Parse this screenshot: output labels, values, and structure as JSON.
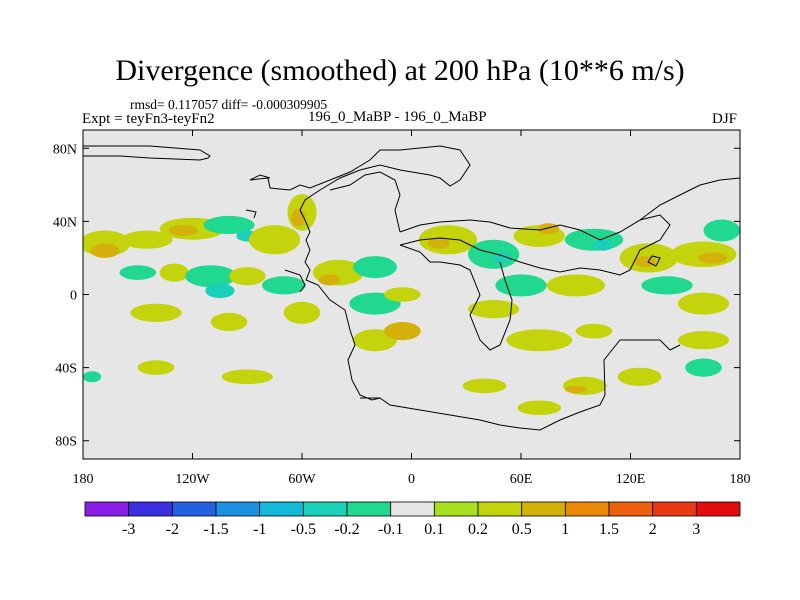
{
  "title": "Divergence (smoothed) at 200 hPa (10**6 m/s)",
  "stats": "rmsd= 0.117057 diff= -0.000309905",
  "expt": "Expt = teyFn3-teyFn2",
  "case": "196_0_MaBP - 196_0_MaBP",
  "season": "DJF",
  "colors": {
    "background": "#e6e6e6",
    "coast": "#000000"
  },
  "chart_data": {
    "type": "heatmap",
    "title": "Divergence (smoothed) at 200 hPa (10**6 m/s)",
    "xlabel": "",
    "ylabel": "",
    "xlim": [
      -180,
      180
    ],
    "ylim": [
      -90,
      90
    ],
    "x_ticks": [
      {
        "value": -180,
        "label": "180"
      },
      {
        "value": -120,
        "label": "120W"
      },
      {
        "value": -60,
        "label": "60W"
      },
      {
        "value": 0,
        "label": "0"
      },
      {
        "value": 60,
        "label": "60E"
      },
      {
        "value": 120,
        "label": "120E"
      },
      {
        "value": 180,
        "label": "180"
      }
    ],
    "y_ticks": [
      {
        "value": 80,
        "label": "80N"
      },
      {
        "value": 40,
        "label": "40N"
      },
      {
        "value": 0,
        "label": "0"
      },
      {
        "value": -40,
        "label": "40S"
      },
      {
        "value": -80,
        "label": "80S"
      }
    ],
    "colorbar": {
      "colors": [
        "#8a1fe8",
        "#3b2fe0",
        "#2460e0",
        "#1e90e0",
        "#14b8d8",
        "#1ad0b8",
        "#20d890",
        "#e6e6e6",
        "#a6e020",
        "#c4d40c",
        "#d4b00a",
        "#e88a08",
        "#ee6010",
        "#e83814",
        "#e40c0c"
      ],
      "levels": [
        "-3",
        "-2",
        "-1.5",
        "-1",
        "-0.5",
        "-0.2",
        "-0.1",
        "0.1",
        "0.2",
        "0.5",
        "1",
        "1.5",
        "2",
        "3"
      ]
    },
    "anomalies": [
      {
        "lon": -168,
        "lat": 28,
        "rx": 14,
        "ry": 7,
        "v": 0.2
      },
      {
        "lon": -168,
        "lat": 24,
        "rx": 8,
        "ry": 4,
        "v": 0.5
      },
      {
        "lon": -145,
        "lat": 30,
        "rx": 14,
        "ry": 5,
        "v": 0.2
      },
      {
        "lon": -150,
        "lat": 47,
        "rx": 10,
        "ry": 3,
        "v": -0.1
      },
      {
        "lon": -120,
        "lat": 36,
        "rx": 18,
        "ry": 6,
        "v": 0.2
      },
      {
        "lon": -125,
        "lat": 35,
        "rx": 8,
        "ry": 3,
        "v": 0.5
      },
      {
        "lon": -100,
        "lat": 38,
        "rx": 14,
        "ry": 5,
        "v": -0.2
      },
      {
        "lon": -90,
        "lat": 32,
        "rx": 6,
        "ry": 3,
        "v": -0.5
      },
      {
        "lon": -75,
        "lat": 30,
        "rx": 14,
        "ry": 8,
        "v": 0.2
      },
      {
        "lon": -60,
        "lat": 45,
        "rx": 8,
        "ry": 10,
        "v": 0.2
      },
      {
        "lon": -62,
        "lat": 42,
        "rx": 4,
        "ry": 5,
        "v": 0.5
      },
      {
        "lon": -160,
        "lat": 5,
        "rx": 12,
        "ry": 5,
        "v": -0.1
      },
      {
        "lon": -150,
        "lat": 12,
        "rx": 10,
        "ry": 4,
        "v": -0.2
      },
      {
        "lon": -130,
        "lat": 12,
        "rx": 8,
        "ry": 5,
        "v": 0.2
      },
      {
        "lon": -110,
        "lat": 10,
        "rx": 14,
        "ry": 6,
        "v": -0.2
      },
      {
        "lon": -105,
        "lat": 2,
        "rx": 8,
        "ry": 4,
        "v": -0.5
      },
      {
        "lon": -90,
        "lat": 10,
        "rx": 10,
        "ry": 5,
        "v": 0.2
      },
      {
        "lon": -70,
        "lat": 5,
        "rx": 12,
        "ry": 5,
        "v": -0.2
      },
      {
        "lon": -40,
        "lat": 12,
        "rx": 14,
        "ry": 7,
        "v": 0.2
      },
      {
        "lon": -45,
        "lat": 8,
        "rx": 6,
        "ry": 3,
        "v": 0.5
      },
      {
        "lon": -20,
        "lat": 15,
        "rx": 12,
        "ry": 6,
        "v": -0.2
      },
      {
        "lon": -20,
        "lat": -5,
        "rx": 14,
        "ry": 6,
        "v": -0.2
      },
      {
        "lon": -5,
        "lat": 0,
        "rx": 10,
        "ry": 4,
        "v": 0.2
      },
      {
        "lon": 20,
        "lat": 30,
        "rx": 16,
        "ry": 8,
        "v": 0.2
      },
      {
        "lon": 15,
        "lat": 28,
        "rx": 6,
        "ry": 3,
        "v": 0.5
      },
      {
        "lon": 45,
        "lat": 22,
        "rx": 14,
        "ry": 8,
        "v": -0.2
      },
      {
        "lon": 50,
        "lat": 20,
        "rx": 5,
        "ry": 3,
        "v": -0.5
      },
      {
        "lon": 70,
        "lat": 32,
        "rx": 14,
        "ry": 6,
        "v": 0.2
      },
      {
        "lon": 75,
        "lat": 36,
        "rx": 6,
        "ry": 3,
        "v": 0.5
      },
      {
        "lon": 100,
        "lat": 30,
        "rx": 16,
        "ry": 6,
        "v": -0.2
      },
      {
        "lon": 105,
        "lat": 27,
        "rx": 6,
        "ry": 3,
        "v": -0.5
      },
      {
        "lon": 130,
        "lat": 20,
        "rx": 16,
        "ry": 8,
        "v": 0.2
      },
      {
        "lon": 128,
        "lat": 18,
        "rx": 6,
        "ry": 3,
        "v": 0.5
      },
      {
        "lon": 160,
        "lat": 22,
        "rx": 18,
        "ry": 7,
        "v": 0.2
      },
      {
        "lon": 165,
        "lat": 20,
        "rx": 8,
        "ry": 3,
        "v": 0.5
      },
      {
        "lon": 170,
        "lat": 35,
        "rx": 10,
        "ry": 6,
        "v": -0.2
      },
      {
        "lon": 60,
        "lat": 5,
        "rx": 14,
        "ry": 6,
        "v": -0.2
      },
      {
        "lon": 90,
        "lat": 5,
        "rx": 16,
        "ry": 6,
        "v": 0.2
      },
      {
        "lon": 140,
        "lat": 5,
        "rx": 14,
        "ry": 5,
        "v": -0.2
      },
      {
        "lon": 160,
        "lat": -5,
        "rx": 14,
        "ry": 6,
        "v": 0.2
      },
      {
        "lon": 45,
        "lat": -8,
        "rx": 14,
        "ry": 5,
        "v": 0.2
      },
      {
        "lon": -140,
        "lat": -10,
        "rx": 14,
        "ry": 5,
        "v": 0.2
      },
      {
        "lon": -100,
        "lat": -15,
        "rx": 10,
        "ry": 5,
        "v": 0.2
      },
      {
        "lon": -60,
        "lat": -10,
        "rx": 10,
        "ry": 6,
        "v": 0.2
      },
      {
        "lon": -20,
        "lat": -25,
        "rx": 12,
        "ry": 6,
        "v": 0.2
      },
      {
        "lon": -5,
        "lat": -20,
        "rx": 10,
        "ry": 5,
        "v": 0.5
      },
      {
        "lon": 70,
        "lat": -25,
        "rx": 18,
        "ry": 6,
        "v": 0.2
      },
      {
        "lon": 100,
        "lat": -20,
        "rx": 10,
        "ry": 4,
        "v": 0.2
      },
      {
        "lon": 160,
        "lat": -25,
        "rx": 14,
        "ry": 5,
        "v": 0.2
      },
      {
        "lon": -140,
        "lat": -40,
        "rx": 10,
        "ry": 4,
        "v": 0.2
      },
      {
        "lon": -90,
        "lat": -45,
        "rx": 14,
        "ry": 4,
        "v": 0.2
      },
      {
        "lon": 40,
        "lat": -50,
        "rx": 12,
        "ry": 4,
        "v": 0.2
      },
      {
        "lon": 95,
        "lat": -50,
        "rx": 12,
        "ry": 5,
        "v": 0.2
      },
      {
        "lon": 90,
        "lat": -52,
        "rx": 6,
        "ry": 2,
        "v": 0.5
      },
      {
        "lon": 125,
        "lat": -45,
        "rx": 12,
        "ry": 5,
        "v": 0.2
      },
      {
        "lon": -175,
        "lat": -45,
        "rx": 5,
        "ry": 3,
        "v": -0.2
      },
      {
        "lon": 70,
        "lat": -62,
        "rx": 12,
        "ry": 4,
        "v": 0.2
      },
      {
        "lon": 160,
        "lat": -40,
        "rx": 10,
        "ry": 5,
        "v": -0.2
      }
    ]
  }
}
